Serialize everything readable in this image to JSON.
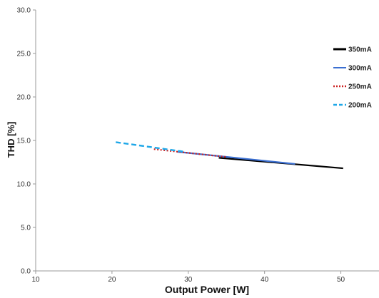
{
  "chart_data": {
    "type": "line",
    "xlabel": "Output Power [W]",
    "ylabel": "THD [%]",
    "xlim": [
      10,
      55
    ],
    "ylim": [
      0,
      30
    ],
    "x_ticks": [
      "10",
      "20",
      "30",
      "40",
      "50"
    ],
    "y_ticks": [
      "0.0",
      "5.0",
      "10.0",
      "15.0",
      "20.0",
      "25.0",
      "30.0"
    ],
    "grid": false,
    "legend_position": "right",
    "series": [
      {
        "name": "350mA",
        "color": "#000000",
        "dash": "solid",
        "x": [
          34,
          50.3
        ],
        "y": [
          13.0,
          11.8
        ]
      },
      {
        "name": "300mA",
        "color": "#3b6fd1",
        "dash": "solid",
        "x": [
          28.5,
          44
        ],
        "y": [
          13.7,
          12.3
        ]
      },
      {
        "name": "250mA",
        "color": "#cc2222",
        "dash": "dotted",
        "x": [
          25.5,
          35
        ],
        "y": [
          14.0,
          13.1
        ]
      },
      {
        "name": "200mA",
        "color": "#1ea7e8",
        "dash": "dashed",
        "x": [
          20.5,
          29.5
        ],
        "y": [
          14.8,
          13.7
        ]
      }
    ]
  }
}
